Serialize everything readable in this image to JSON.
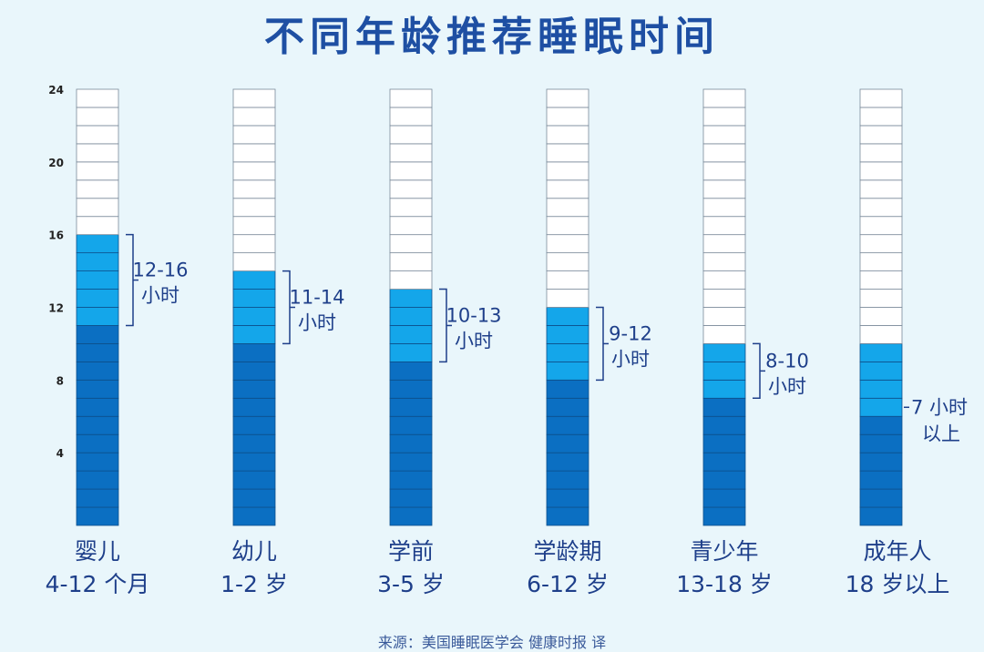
{
  "chart_data": {
    "type": "bar",
    "title": "不同年龄推荐睡眠时间",
    "source": "来源：美国睡眠医学会   健康时报 译",
    "ylim": [
      0,
      24
    ],
    "yticks": [
      "4",
      "8",
      "12",
      "16",
      "20",
      "24"
    ],
    "categories": [
      {
        "name": "婴儿",
        "age": "4-12 个月",
        "label1": "12-16",
        "label2": "小时",
        "dark": 11,
        "light": 16,
        "bracket": true
      },
      {
        "name": "幼儿",
        "age": "1-2 岁",
        "label1": "11-14",
        "label2": "小时",
        "dark": 10,
        "light": 14,
        "bracket": true
      },
      {
        "name": "学前",
        "age": "3-5 岁",
        "label1": "10-13",
        "label2": "小时",
        "dark": 9,
        "light": 13,
        "bracket": true
      },
      {
        "name": "学龄期",
        "age": "6-12 岁",
        "label1": "9-12",
        "label2": "小时",
        "dark": 8,
        "light": 12,
        "bracket": true
      },
      {
        "name": "青少年",
        "age": "13-18 岁",
        "label1": "8-10",
        "label2": "小时",
        "dark": 7,
        "light": 10,
        "bracket": true
      },
      {
        "name": "成年人",
        "age": "18 岁以上",
        "label1": "7 小时",
        "label2": "以上",
        "dark": 6,
        "light": 10,
        "bracket": false
      }
    ],
    "colors": {
      "dark": "#0b6fc2",
      "light": "#14a6ea",
      "empty": "#ffffff",
      "text": "#1e3f8a",
      "grid": "#1a4a80"
    }
  }
}
